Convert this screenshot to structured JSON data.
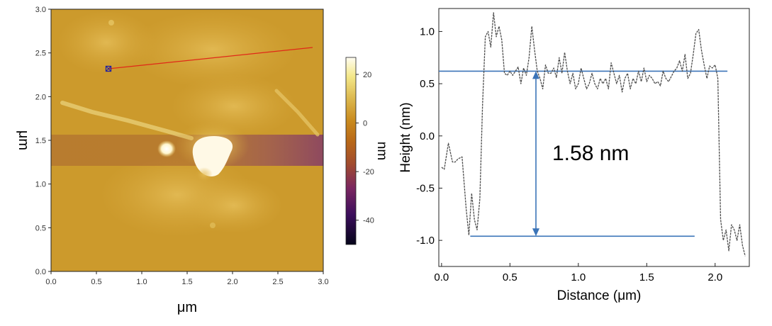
{
  "afm_image": {
    "x_ticks": [
      "0.0",
      "0.5",
      "1.0",
      "1.5",
      "2.0",
      "2.5",
      "3.0"
    ],
    "y_ticks": [
      "0.0",
      "0.5",
      "1.0",
      "1.5",
      "2.0",
      "2.5",
      "3.0"
    ],
    "x_label": "μm",
    "y_label": "μm",
    "colorbar_ticks": [
      "20",
      "0",
      "-20",
      "-40"
    ],
    "colorbar_label": "nm",
    "colorbar_range": [
      -50,
      27
    ],
    "colors": {
      "background": "#cc9a2c",
      "dark_band": "#a0502e",
      "bright": "#fffbe0",
      "profile_line": "#e02818",
      "marker": "#2020a0"
    }
  },
  "chart_data": {
    "type": "line",
    "xlabel": "Distance (μm)",
    "ylabel": "Height (nm)",
    "xlim": [
      -0.02,
      2.25
    ],
    "ylim": [
      -1.25,
      1.22
    ],
    "x_ticks": [
      "0.0",
      "0.5",
      "1.0",
      "1.5",
      "2.0"
    ],
    "y_ticks": [
      "1.0",
      "0.5",
      "0.0",
      "-0.5",
      "-1.0"
    ],
    "series": [
      {
        "color": "#4d4d4d",
        "x": [
          0.0,
          0.02,
          0.05,
          0.08,
          0.1,
          0.12,
          0.15,
          0.18,
          0.2,
          0.22,
          0.24,
          0.26,
          0.28,
          0.3,
          0.32,
          0.34,
          0.36,
          0.38,
          0.4,
          0.42,
          0.44,
          0.46,
          0.48,
          0.5,
          0.52,
          0.54,
          0.56,
          0.58,
          0.6,
          0.62,
          0.64,
          0.66,
          0.68,
          0.7,
          0.72,
          0.74,
          0.76,
          0.78,
          0.8,
          0.82,
          0.84,
          0.86,
          0.88,
          0.9,
          0.92,
          0.94,
          0.96,
          0.98,
          1.0,
          1.02,
          1.04,
          1.06,
          1.08,
          1.1,
          1.12,
          1.14,
          1.16,
          1.18,
          1.2,
          1.22,
          1.24,
          1.26,
          1.28,
          1.3,
          1.32,
          1.34,
          1.36,
          1.38,
          1.4,
          1.42,
          1.44,
          1.46,
          1.48,
          1.5,
          1.52,
          1.54,
          1.56,
          1.58,
          1.6,
          1.62,
          1.64,
          1.66,
          1.68,
          1.7,
          1.72,
          1.74,
          1.76,
          1.78,
          1.8,
          1.82,
          1.84,
          1.86,
          1.88,
          1.9,
          1.92,
          1.94,
          1.96,
          1.98,
          2.0,
          2.02,
          2.04,
          2.06,
          2.08,
          2.1,
          2.12,
          2.14,
          2.16,
          2.18,
          2.2,
          2.22
        ],
        "y": [
          -0.3,
          -0.32,
          -0.07,
          -0.25,
          -0.25,
          -0.22,
          -0.2,
          -0.7,
          -0.95,
          -0.55,
          -0.8,
          -0.9,
          -0.6,
          0.3,
          0.95,
          1.0,
          0.85,
          1.18,
          0.95,
          1.05,
          0.92,
          0.6,
          0.58,
          0.62,
          0.58,
          0.62,
          0.66,
          0.5,
          0.65,
          0.58,
          0.75,
          1.05,
          0.82,
          0.62,
          0.55,
          0.45,
          0.68,
          0.6,
          0.6,
          0.65,
          0.56,
          0.75,
          0.6,
          0.8,
          0.62,
          0.5,
          0.6,
          0.45,
          0.5,
          0.65,
          0.55,
          0.45,
          0.5,
          0.6,
          0.5,
          0.45,
          0.55,
          0.5,
          0.55,
          0.45,
          0.7,
          0.6,
          0.5,
          0.58,
          0.42,
          0.55,
          0.6,
          0.45,
          0.55,
          0.5,
          0.62,
          0.52,
          0.65,
          0.52,
          0.58,
          0.55,
          0.5,
          0.52,
          0.48,
          0.62,
          0.55,
          0.52,
          0.57,
          0.62,
          0.65,
          0.72,
          0.62,
          0.78,
          0.55,
          0.6,
          0.78,
          0.98,
          1.02,
          0.82,
          0.68,
          0.55,
          0.67,
          0.65,
          0.68,
          0.55,
          -0.8,
          -1.0,
          -0.9,
          -1.1,
          -0.85,
          -0.9,
          -1.0,
          -0.85,
          -1.05,
          -1.15
        ]
      }
    ],
    "reference_lines": [
      {
        "y": 0.62,
        "x_range": [
          -0.02,
          2.09
        ]
      },
      {
        "y": -0.96,
        "x_range": [
          0.21,
          1.85
        ]
      }
    ],
    "step_arrow": {
      "x": 0.69,
      "from": -0.96,
      "to": 0.62
    },
    "annotation": "1.58 nm",
    "colors": {
      "line": "#4d4d4d",
      "reference": "#3b74b8"
    }
  }
}
